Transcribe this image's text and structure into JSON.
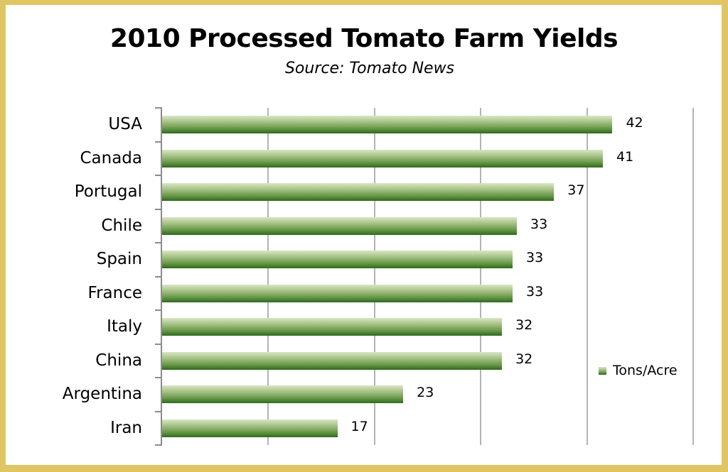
{
  "chart_data": {
    "type": "bar",
    "orientation": "horizontal",
    "title": "2010 Processed Tomato Farm Yields",
    "subtitle": "Source: Tomato News",
    "xlabel": "",
    "ylabel": "",
    "xlim": [
      0,
      50
    ],
    "grid": true,
    "gridline_values": [
      10,
      20,
      30,
      40,
      50
    ],
    "legend_position": "right",
    "categories": [
      "USA",
      "Canada",
      "Portugal",
      "Chile",
      "Spain",
      "France",
      "Italy",
      "China",
      "Argentina",
      "Iran"
    ],
    "series": [
      {
        "name": "Tons/Acre",
        "values": [
          42,
          41,
          37,
          33,
          33,
          33,
          32,
          32,
          23,
          17
        ],
        "bar_lengths": [
          42.4,
          41.5,
          36.9,
          33.4,
          33.0,
          33.0,
          32.0,
          32.0,
          22.7,
          16.5
        ],
        "color": "#4a7f32"
      }
    ]
  },
  "title": "2010 Processed Tomato Farm Yields",
  "subtitle": "Source: Tomato News",
  "legend": {
    "label": "Tons/Acre"
  },
  "colors": {
    "border": "#e0c663",
    "bar_dark": "#2e6b1d",
    "bar_light": "#d9e6c3",
    "gridline": "#b3b3b3"
  }
}
